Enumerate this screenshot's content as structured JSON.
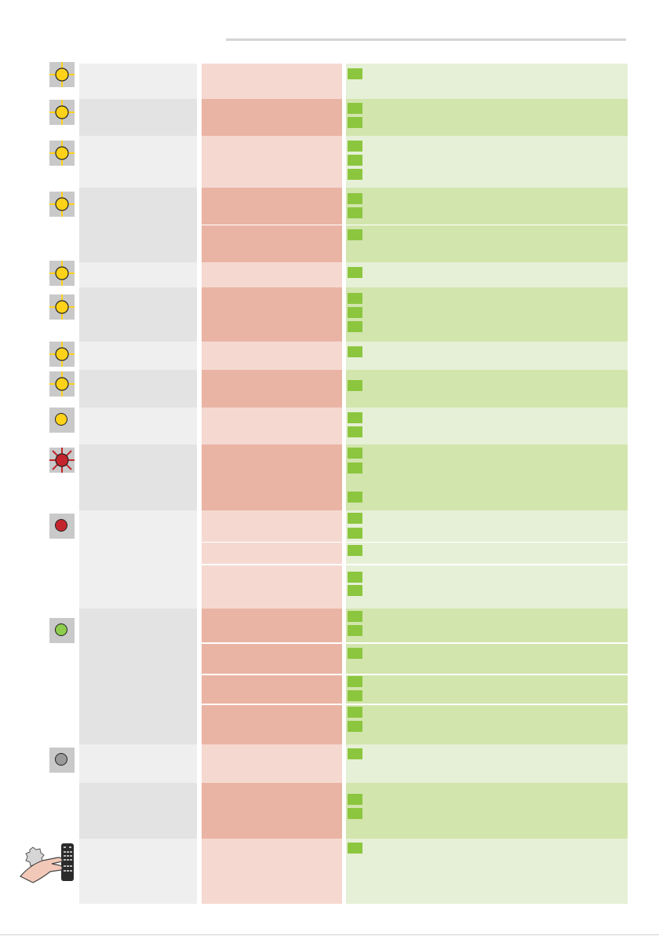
{
  "colors": {
    "col1_light": "#efefef",
    "col1_dark": "#e3e3e3",
    "col2_light": "#f5d9d1",
    "col2_dark": "#eab4a4",
    "col3_light": "#e6f0d7",
    "col3_dark": "#d2e5ad",
    "check_square": "#8cc63f",
    "led_yellow": "#ffd21a",
    "led_red": "#c4242b",
    "led_green": "#8dcc4c",
    "led_grey": "#9a9a9a",
    "led_indicator_bg": "#c9c9c9"
  },
  "indicators": [
    {
      "icon": "yellow-led-blinking-icon",
      "state": "blinking",
      "color": "yellow"
    },
    {
      "icon": "yellow-led-blinking-icon",
      "state": "blinking",
      "color": "yellow"
    },
    {
      "icon": "yellow-led-blinking-icon",
      "state": "blinking",
      "color": "yellow"
    },
    {
      "icon": "yellow-led-blinking-icon",
      "state": "blinking",
      "color": "yellow"
    },
    {
      "icon": "yellow-led-blinking-icon",
      "state": "blinking",
      "color": "yellow"
    },
    {
      "icon": "yellow-led-blinking-icon",
      "state": "blinking",
      "color": "yellow"
    },
    {
      "icon": "yellow-led-blinking-icon",
      "state": "blinking",
      "color": "yellow"
    },
    {
      "icon": "yellow-led-blinking-icon",
      "state": "blinking",
      "color": "yellow"
    },
    {
      "icon": "yellow-led-steady-icon",
      "state": "steady",
      "color": "yellow"
    },
    {
      "icon": "red-led-blinking-icon",
      "state": "blinking",
      "color": "red"
    },
    {
      "icon": "red-led-steady-icon",
      "state": "steady",
      "color": "red"
    },
    {
      "icon": "green-led-steady-icon",
      "state": "steady",
      "color": "green"
    },
    {
      "icon": "grey-led-off-icon",
      "state": "off",
      "color": "grey"
    },
    {
      "icon": "hand-pressing-remote-icon",
      "state": "remote",
      "color": ""
    }
  ],
  "check_counts": [
    1,
    2,
    3,
    2,
    1,
    1,
    3,
    1,
    1,
    2,
    3,
    2,
    1,
    2,
    2,
    1,
    2,
    2,
    1,
    2,
    1
  ]
}
